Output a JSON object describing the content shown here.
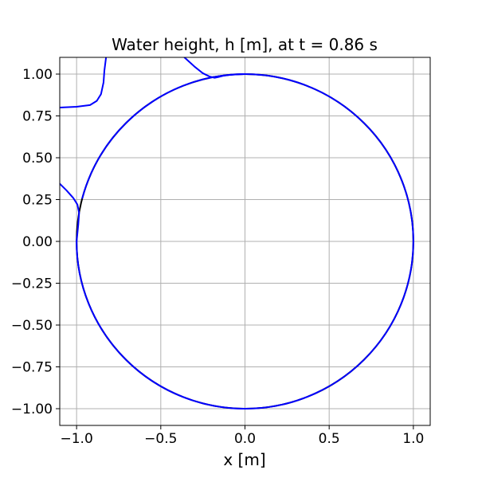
{
  "chart_data": {
    "type": "line",
    "title": "Water height, h [m], at t = 0.86 s",
    "xlabel": "x [m]",
    "ylabel": "",
    "xlim": [
      -1.1,
      1.1
    ],
    "ylim": [
      -1.1,
      1.1
    ],
    "grid": true,
    "aspect": "equal",
    "xticks": [
      -1.0,
      -0.5,
      0.0,
      0.5,
      1.0
    ],
    "xtick_labels": [
      "−1.0",
      "−0.5",
      "0.0",
      "0.5",
      "1.0"
    ],
    "yticks": [
      1.0,
      0.75,
      0.5,
      0.25,
      0.0,
      -0.25,
      -0.5,
      -0.75,
      -1.0
    ],
    "ytick_labels": [
      "1.00",
      "0.75",
      "0.50",
      "0.25",
      "0.00",
      "−0.25",
      "−0.50",
      "−0.75",
      "−1.00"
    ],
    "series": [
      {
        "color": "#000000",
        "shape": "unit circle",
        "x": [
          1.0,
          0.707,
          0.0,
          -0.707,
          -1.0,
          -0.707,
          0.0,
          0.707,
          1.0
        ],
        "y": [
          0.0,
          0.707,
          1.0,
          0.707,
          0.0,
          -0.707,
          -1.0,
          -0.707,
          0.0
        ]
      },
      {
        "color": "#0000ff",
        "segments": [
          {
            "x": [
              -1.1,
              -1.0,
              -0.92,
              -0.88,
              -0.855,
              -0.84,
              -0.835,
              -0.825
            ],
            "y": [
              0.8,
              0.805,
              0.815,
              0.84,
              0.88,
              0.95,
              1.02,
              1.1
            ]
          },
          {
            "x": [
              -0.36,
              -0.3,
              -0.25,
              -0.21,
              -0.18,
              -0.16,
              -0.13,
              -0.09,
              -0.05,
              0.0
            ],
            "y": [
              1.1,
              1.045,
              1.005,
              0.985,
              0.978,
              0.982,
              0.99,
              0.995,
              0.998,
              1.0
            ]
          },
          {
            "x": [
              -1.1,
              -1.06,
              -1.02,
              -0.995,
              -0.985,
              -0.99,
              -1.0
            ],
            "y": [
              0.345,
              0.305,
              0.26,
              0.22,
              0.17,
              0.1,
              0.0
            ]
          },
          {
            "x": [
              -1.0,
              -0.707,
              0.0,
              0.707,
              1.0,
              0.707,
              0.0,
              -0.292,
              -0.5,
              -0.707,
              -0.866,
              -0.966
            ],
            "y": [
              0.0,
              -0.707,
              -1.0,
              -0.707,
              0.0,
              0.707,
              1.0,
              0.956,
              0.866,
              0.707,
              0.5,
              0.259
            ]
          }
        ]
      }
    ]
  }
}
